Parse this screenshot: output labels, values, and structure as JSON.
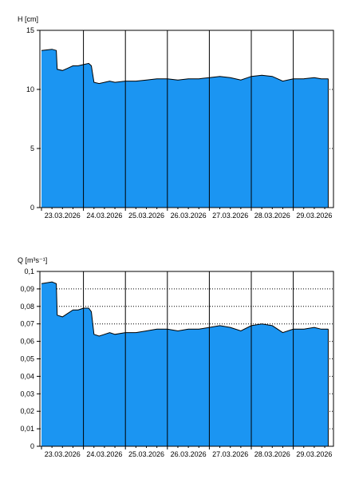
{
  "chart_data": [
    {
      "type": "area",
      "ylabel": "H [cm]",
      "ylim": [
        0,
        15
      ],
      "yticks": [
        "0",
        "5",
        "10",
        "15"
      ],
      "xlim": [
        "2026-03-23",
        "2026-03-30"
      ],
      "x_tick_labels": [
        "23.03.2026",
        "24.03.2026",
        "25.03.2026",
        "26.03.2026",
        "27.03.2026",
        "28.03.2026",
        "29.03.2026"
      ],
      "grid": "dotted horizontal, solid vertical at midnight",
      "fill_color": "#1b95f2",
      "line_color": "#000000",
      "series": [
        {
          "x": [
            "2026-03-23 00:00",
            "2026-03-23 06:00",
            "2026-03-23 08:30",
            "2026-03-23 09:00",
            "2026-03-23 12:00",
            "2026-03-23 15:00",
            "2026-03-23 18:00",
            "2026-03-23 21:00",
            "2026-03-24 00:00",
            "2026-03-24 03:00",
            "2026-03-24 04:30",
            "2026-03-24 06:00",
            "2026-03-24 09:00",
            "2026-03-24 12:00",
            "2026-03-24 15:00",
            "2026-03-24 18:00",
            "2026-03-25 00:00",
            "2026-03-25 06:00",
            "2026-03-25 12:00",
            "2026-03-25 18:00",
            "2026-03-26 00:00",
            "2026-03-26 06:00",
            "2026-03-26 12:00",
            "2026-03-26 18:00",
            "2026-03-27 00:00",
            "2026-03-27 06:00",
            "2026-03-27 12:00",
            "2026-03-27 18:00",
            "2026-03-28 00:00",
            "2026-03-28 06:00",
            "2026-03-28 12:00",
            "2026-03-28 18:00",
            "2026-03-29 00:00",
            "2026-03-29 06:00",
            "2026-03-29 12:00",
            "2026-03-29 16:00",
            "2026-03-29 20:00"
          ],
          "values": [
            13.3,
            13.4,
            13.3,
            11.7,
            11.6,
            11.8,
            12.0,
            12.0,
            12.1,
            12.2,
            12.0,
            10.6,
            10.5,
            10.6,
            10.7,
            10.6,
            10.7,
            10.7,
            10.8,
            10.9,
            10.9,
            10.8,
            10.9,
            10.9,
            11.0,
            11.1,
            11.0,
            10.8,
            11.1,
            11.2,
            11.1,
            10.7,
            10.9,
            10.9,
            11.0,
            10.9,
            10.9
          ]
        }
      ]
    },
    {
      "type": "area",
      "ylabel": "Q [m³s⁻¹]",
      "ylim": [
        0,
        0.1
      ],
      "yticks": [
        "0",
        "0,01",
        "0,02",
        "0,03",
        "0,04",
        "0,05",
        "0,06",
        "0,07",
        "0,08",
        "0,09",
        "0,1"
      ],
      "xlim": [
        "2026-03-23",
        "2026-03-30"
      ],
      "x_tick_labels": [
        "23.03.2026",
        "24.03.2026",
        "25.03.2026",
        "26.03.2026",
        "27.03.2026",
        "28.03.2026",
        "29.03.2026"
      ],
      "grid": "dotted horizontal, solid vertical at midnight",
      "fill_color": "#1b95f2",
      "line_color": "#000000",
      "series": [
        {
          "x": [
            "2026-03-23 00:00",
            "2026-03-23 06:00",
            "2026-03-23 08:30",
            "2026-03-23 09:00",
            "2026-03-23 12:00",
            "2026-03-23 15:00",
            "2026-03-23 18:00",
            "2026-03-23 21:00",
            "2026-03-24 00:00",
            "2026-03-24 03:00",
            "2026-03-24 04:30",
            "2026-03-24 06:00",
            "2026-03-24 09:00",
            "2026-03-24 12:00",
            "2026-03-24 15:00",
            "2026-03-24 18:00",
            "2026-03-25 00:00",
            "2026-03-25 06:00",
            "2026-03-25 12:00",
            "2026-03-25 18:00",
            "2026-03-26 00:00",
            "2026-03-26 06:00",
            "2026-03-26 12:00",
            "2026-03-26 18:00",
            "2026-03-27 00:00",
            "2026-03-27 06:00",
            "2026-03-27 12:00",
            "2026-03-27 18:00",
            "2026-03-28 00:00",
            "2026-03-28 06:00",
            "2026-03-28 12:00",
            "2026-03-28 18:00",
            "2026-03-29 00:00",
            "2026-03-29 06:00",
            "2026-03-29 12:00",
            "2026-03-29 16:00",
            "2026-03-29 20:00"
          ],
          "values": [
            0.093,
            0.094,
            0.093,
            0.075,
            0.074,
            0.076,
            0.078,
            0.078,
            0.079,
            0.079,
            0.077,
            0.064,
            0.063,
            0.064,
            0.065,
            0.064,
            0.065,
            0.065,
            0.066,
            0.067,
            0.067,
            0.066,
            0.067,
            0.067,
            0.068,
            0.069,
            0.068,
            0.066,
            0.069,
            0.07,
            0.069,
            0.065,
            0.067,
            0.067,
            0.068,
            0.067,
            0.067
          ]
        }
      ]
    }
  ]
}
